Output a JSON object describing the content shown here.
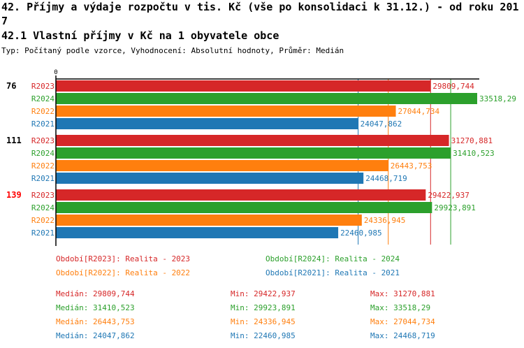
{
  "title": "42. Příjmy a výdaje rozpočtu v tis. Kč (vše po konsolidaci k 31.12.) - od roku 2017",
  "subtitle": "42.1 Vlastní příjmy v Kč na 1 obyvatele obce",
  "info": "Typ: Počítaný podle vzorce, Vyhodnocení: Absolutní hodnoty, Průměr: Medián",
  "chart_data": {
    "type": "bar",
    "orientation": "horizontal",
    "axis_zero_label": "0",
    "xlim": [
      0,
      33518.29
    ],
    "groups": [
      {
        "label": "76",
        "label_color": "#000000",
        "bars": [
          {
            "period": "R2023",
            "value": 29809.744,
            "label": "29809,744"
          },
          {
            "period": "R2024",
            "value": 33518.29,
            "label": "33518,29"
          },
          {
            "period": "R2022",
            "value": 27044.734,
            "label": "27044,734"
          },
          {
            "period": "R2021",
            "value": 24047.862,
            "label": "24047,862"
          }
        ]
      },
      {
        "label": "111",
        "label_color": "#000000",
        "bars": [
          {
            "period": "R2023",
            "value": 31270.881,
            "label": "31270,881"
          },
          {
            "period": "R2024",
            "value": 31410.523,
            "label": "31410,523"
          },
          {
            "period": "R2022",
            "value": 26443.753,
            "label": "26443,753"
          },
          {
            "period": "R2021",
            "value": 24468.719,
            "label": "24468,719"
          }
        ]
      },
      {
        "label": "139",
        "label_color": "#ff0000",
        "bars": [
          {
            "period": "R2023",
            "value": 29422.937,
            "label": "29422,937"
          },
          {
            "period": "R2024",
            "value": 29923.891,
            "label": "29923,891"
          },
          {
            "period": "R2022",
            "value": 24336.945,
            "label": "24336,945"
          },
          {
            "period": "R2021",
            "value": 22460.985,
            "label": "22460,985"
          }
        ]
      }
    ],
    "colors": {
      "R2023": "#d62728",
      "R2024": "#2ca02c",
      "R2022": "#ff7f0e",
      "R2021": "#1f77b4"
    },
    "median_lines": {
      "R2023": 29809.744,
      "R2024": 31410.523,
      "R2022": 26443.753,
      "R2021": 24047.862
    },
    "legend": [
      {
        "period": "R2023",
        "text": "Období[R2023]: Realita - 2023"
      },
      {
        "period": "R2024",
        "text": "Období[R2024]: Realita - 2024"
      },
      {
        "period": "R2022",
        "text": "Období[R2022]: Realita - 2022"
      },
      {
        "period": "R2021",
        "text": "Období[R2021]: Realita - 2021"
      }
    ],
    "stats": [
      {
        "period": "R2023",
        "median": "Medián: 29809,744",
        "min": "Min: 29422,937",
        "max": "Max: 31270,881"
      },
      {
        "period": "R2024",
        "median": "Medián: 31410,523",
        "min": "Min: 29923,891",
        "max": "Max: 33518,29"
      },
      {
        "period": "R2022",
        "median": "Medián: 26443,753",
        "min": "Min: 24336,945",
        "max": "Max: 27044,734"
      },
      {
        "period": "R2021",
        "median": "Medián: 24047,862",
        "min": "Min: 22460,985",
        "max": "Max: 24468,719"
      }
    ]
  }
}
